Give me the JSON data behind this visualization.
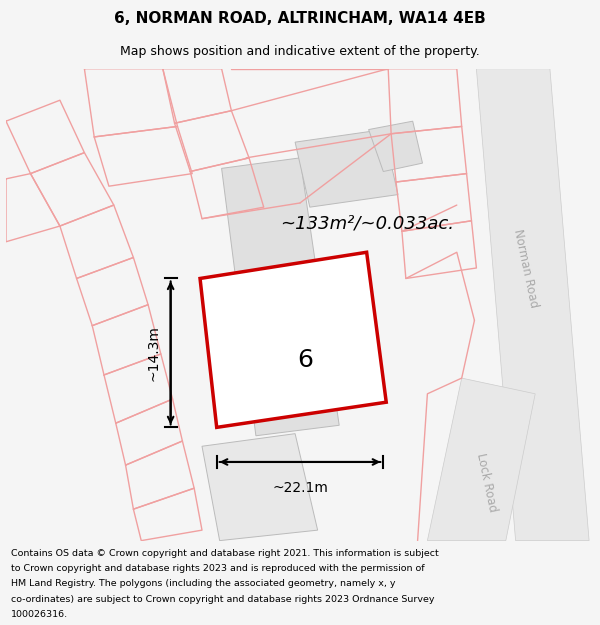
{
  "title": "6, NORMAN ROAD, ALTRINCHAM, WA14 4EB",
  "subtitle": "Map shows position and indicative extent of the property.",
  "footer": "Contains OS data © Crown copyright and database right 2021. This information is subject to Crown copyright and database rights 2023 and is reproduced with the permission of HM Land Registry. The polygons (including the associated geometry, namely x, y co-ordinates) are subject to Crown copyright and database rights 2023 Ordnance Survey 100026316.",
  "area_label": "~133m²/~0.033ac.",
  "width_label": "~22.1m",
  "height_label": "~14.3m",
  "property_number": "6",
  "bg_color": "#f5f5f5",
  "map_bg": "#ffffff",
  "property_fill": "#ffffff",
  "property_edge": "#cc0000",
  "gray_fill": "#e0e0e0",
  "gray_edge": "#bbbbbb",
  "pink_line": "#f0a0a0",
  "road_fill": "#e8e8e8",
  "road_label_color": "#aaaaaa",
  "title_color": "#000000",
  "footer_color": "#000000"
}
